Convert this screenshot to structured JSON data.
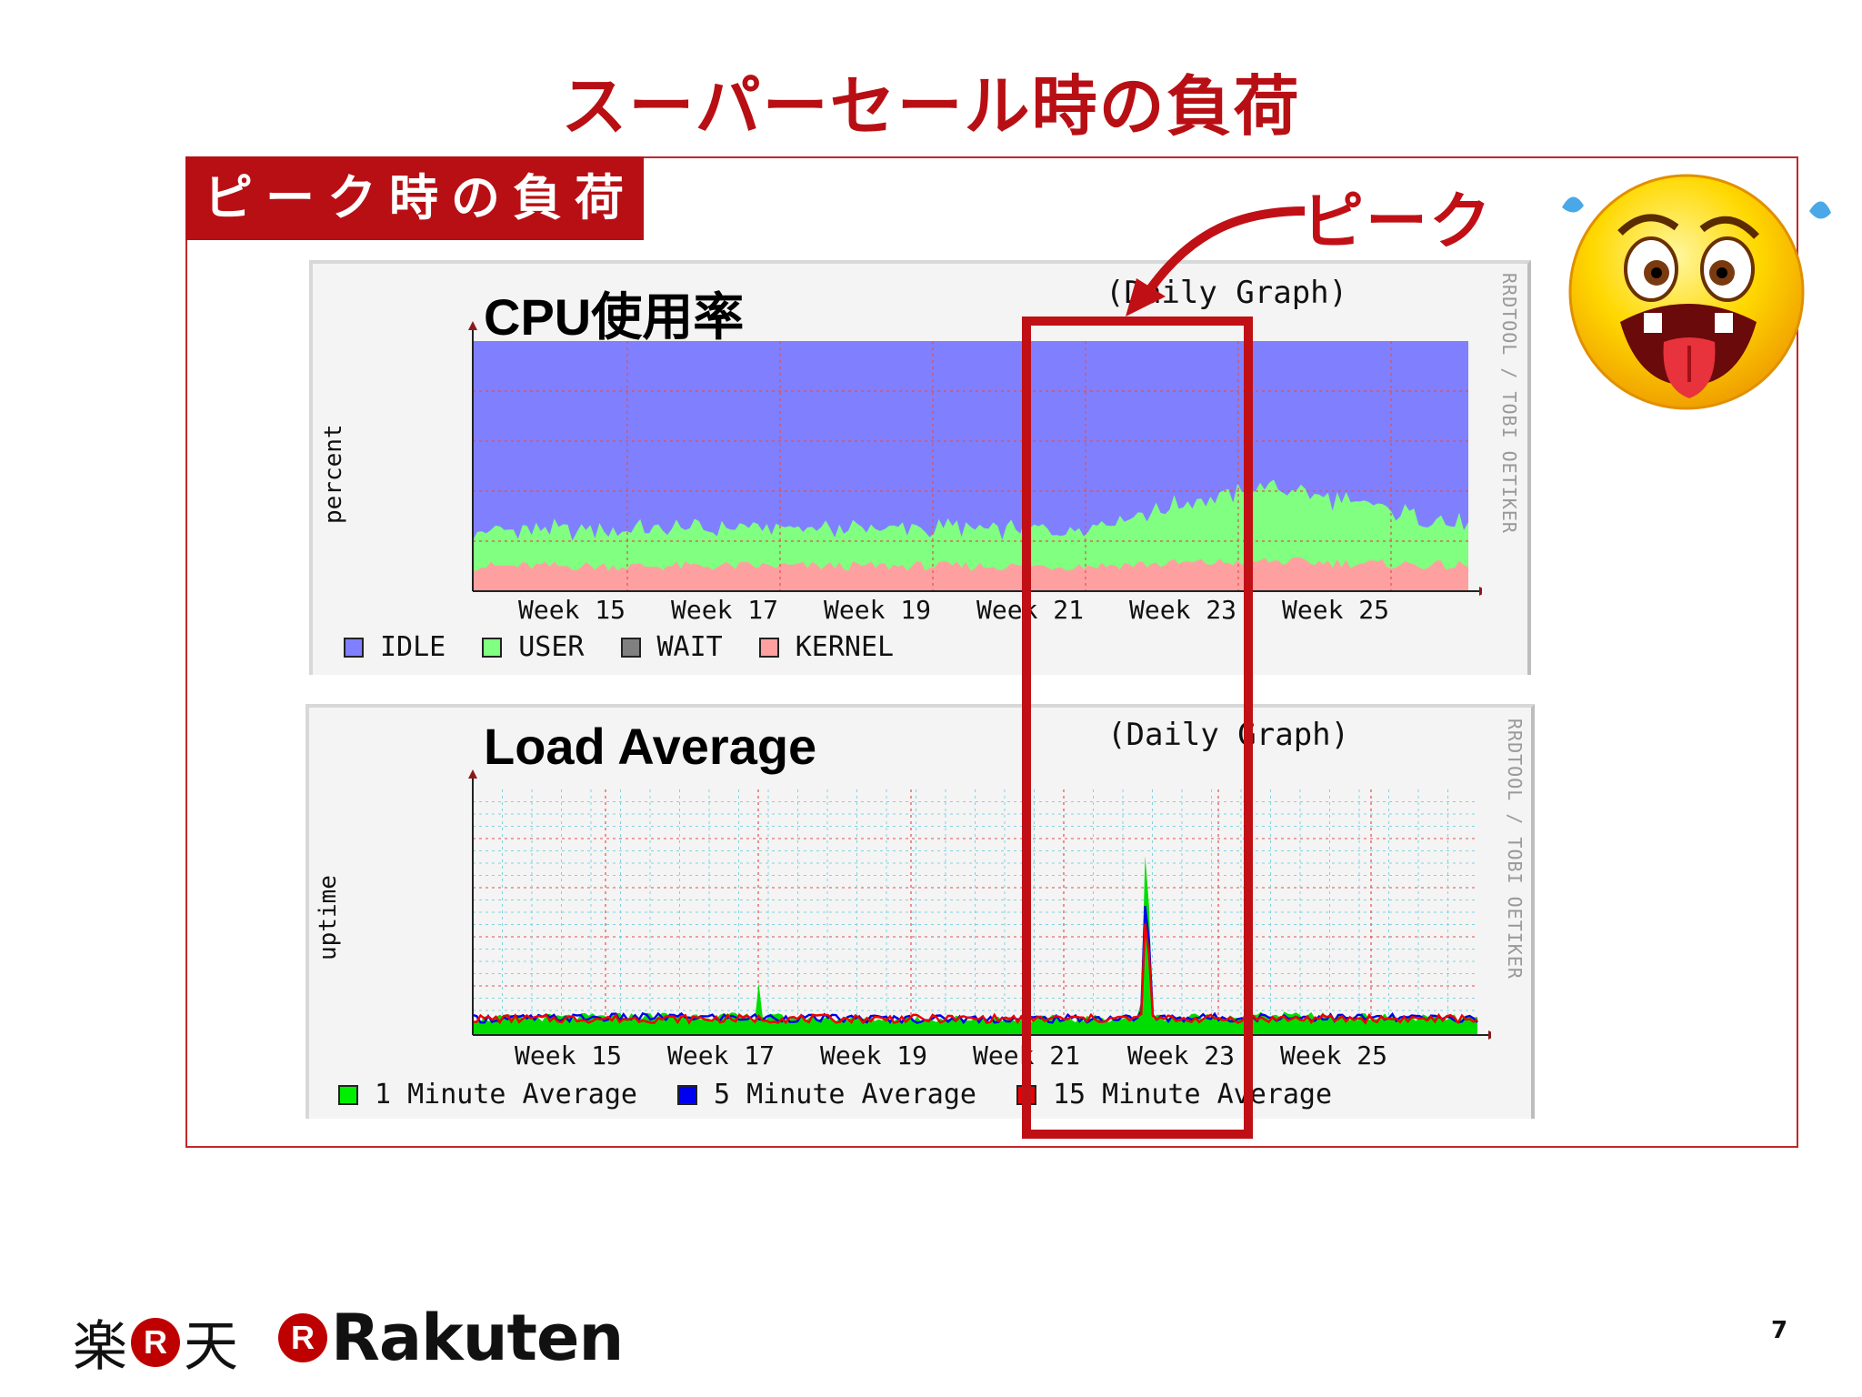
{
  "slide": {
    "title": "スーパーセール時の負荷",
    "section_label": "ピーク時の負荷",
    "peak_label": "ピーク",
    "page_number": "7"
  },
  "cpu_chart": {
    "title": "CPU使用率",
    "subtitle": "(Daily Graph)",
    "ylabel": "percent",
    "side_text": "RRDTOOL / TOBI OETIKER",
    "x_ticks": [
      "Week 15",
      "Week 17",
      "Week 19",
      "Week 21",
      "Week 23",
      "Week 25"
    ],
    "legend": [
      {
        "label": "IDLE",
        "color": "#8080ff"
      },
      {
        "label": "USER",
        "color": "#80ff80"
      },
      {
        "label": "WAIT",
        "color": "#808080"
      },
      {
        "label": "KERNEL",
        "color": "#ffa0a0"
      }
    ]
  },
  "load_chart": {
    "title": "Load Average",
    "subtitle": "(Daily Graph)",
    "ylabel": "uptime",
    "side_text": "RRDTOOL / TOBI OETIKER",
    "x_ticks": [
      "Week 15",
      "Week 17",
      "Week 19",
      "Week 21",
      "Week 23",
      "Week 25"
    ],
    "legend": [
      {
        "label": "1 Minute Average",
        "color": "#00ee00"
      },
      {
        "label": "5 Minute Average",
        "color": "#0000ee"
      },
      {
        "label": "15 Minute Average",
        "color": "#ee0000"
      }
    ]
  },
  "footer": {
    "logo_jp_left": "楽",
    "logo_jp_right": "天",
    "logo_badge": "R",
    "logo_en": "Rakuten"
  },
  "chart_data": [
    {
      "type": "area",
      "title": "CPU使用率",
      "subtitle": "(Daily Graph)",
      "ylabel": "percent",
      "categories": [
        "Week 15",
        "Week 17",
        "Week 19",
        "Week 21",
        "Week 23",
        "Week 25"
      ],
      "series": [
        {
          "name": "KERNEL",
          "values": [
            10,
            10,
            10,
            10,
            12,
            10
          ]
        },
        {
          "name": "USER",
          "values": [
            14,
            15,
            15,
            15,
            30,
            16
          ]
        },
        {
          "name": "WAIT",
          "values": [
            0,
            0,
            0,
            0,
            0,
            0
          ]
        },
        {
          "name": "IDLE",
          "values": [
            76,
            75,
            75,
            75,
            58,
            74
          ]
        }
      ],
      "ylim": [
        0,
        100
      ],
      "grid": true,
      "legend_position": "bottom"
    },
    {
      "type": "line",
      "title": "Load Average",
      "subtitle": "(Daily Graph)",
      "ylabel": "uptime",
      "categories": [
        "Week 15",
        "Week 17",
        "Week 19",
        "Week 21",
        "Week 23",
        "Week 25"
      ],
      "series": [
        {
          "name": "1 Minute Average",
          "values": [
            0.5,
            0.6,
            0.5,
            0.5,
            0.6,
            0.5
          ]
        },
        {
          "name": "5 Minute Average",
          "values": [
            0.5,
            0.55,
            0.5,
            0.5,
            0.55,
            0.5
          ]
        },
        {
          "name": "15 Minute Average",
          "values": [
            0.5,
            0.5,
            0.5,
            0.5,
            0.5,
            0.5
          ]
        }
      ],
      "peak": {
        "week": "Week 22",
        "value": 7.0
      },
      "grid": true,
      "legend_position": "bottom"
    }
  ]
}
